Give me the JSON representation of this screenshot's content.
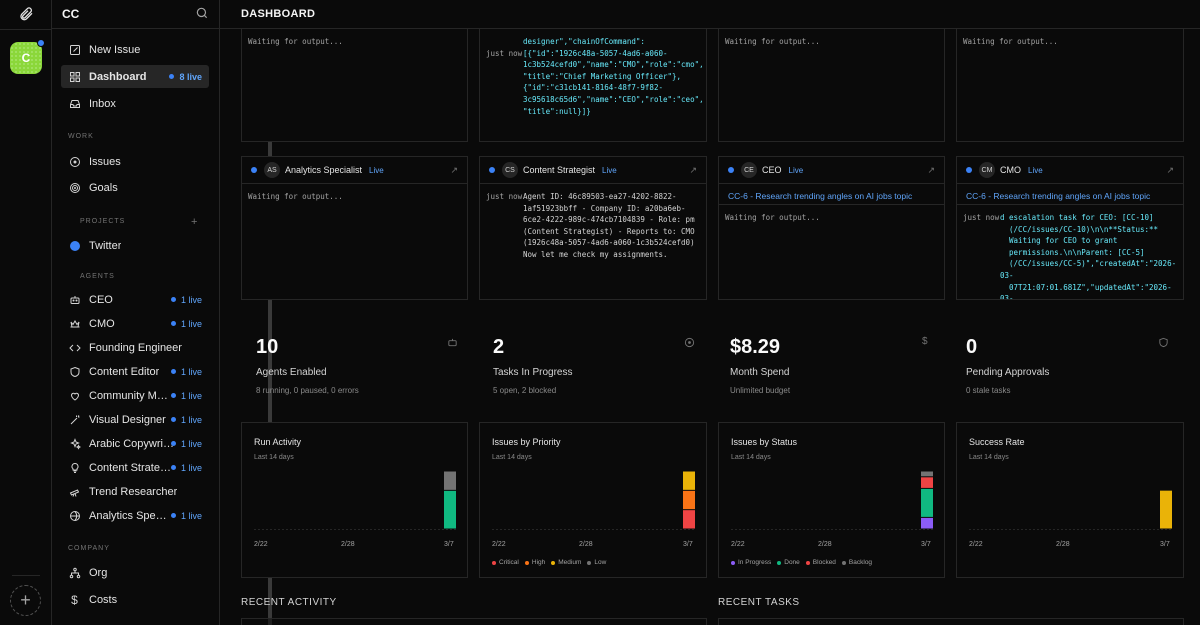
{
  "rail": {
    "company_initial": "C"
  },
  "sidebar": {
    "company_name": "CC",
    "items_top": [
      {
        "label": "New Issue"
      },
      {
        "label": "Dashboard",
        "live": "8 live"
      },
      {
        "label": "Inbox"
      }
    ],
    "work_heading": "WORK",
    "work_items": [
      {
        "label": "Issues"
      },
      {
        "label": "Goals"
      }
    ],
    "projects_heading": "PROJECTS",
    "projects_plus": "+",
    "projects": [
      {
        "label": "Twitter",
        "color": "#3b82f6"
      }
    ],
    "agents_heading": "AGENTS",
    "agents": [
      {
        "label": "CEO",
        "live": "1 live"
      },
      {
        "label": "CMO",
        "live": "1 live"
      },
      {
        "label": "Founding Engineer",
        "live": ""
      },
      {
        "label": "Content Editor",
        "live": "1 live"
      },
      {
        "label": "Community Man...",
        "live": "1 live"
      },
      {
        "label": "Visual Designer",
        "live": "1 live"
      },
      {
        "label": "Arabic Copywriter",
        "live": "1 live"
      },
      {
        "label": "Content Strategist",
        "live": "1 live"
      },
      {
        "label": "Trend Researcher",
        "live": ""
      },
      {
        "label": "Analytics Special...",
        "live": "1 live"
      }
    ],
    "company_heading": "COMPANY",
    "company_items": [
      {
        "label": "Org"
      },
      {
        "label": "Costs"
      }
    ]
  },
  "header": {
    "title": "DASHBOARD"
  },
  "run_cards_top": [
    {
      "lines": [
        {
          "ts": "",
          "text": "Waiting for output..."
        }
      ]
    },
    {
      "lines": [
        {
          "ts": "",
          "text": "designer\",\"chainOfCommand\":"
        },
        {
          "ts": "just now",
          "text": "[{\"id\":\"1926c48a-5057-4ad6-a060-"
        },
        {
          "ts": "",
          "text": "1c3b524cefd0\",\"name\":\"CMO\",\"role\":\"cmo\","
        },
        {
          "ts": "",
          "text": "\"title\":\"Chief Marketing Officer\"},"
        },
        {
          "ts": "",
          "text": "{\"id\":\"c31cb141-8164-48f7-9f82-"
        },
        {
          "ts": "",
          "text": "3c95618c65d6\",\"name\":\"CEO\",\"role\":\"ceo\","
        },
        {
          "ts": "",
          "text": "\"title\":null}]}"
        }
      ]
    },
    {
      "lines": [
        {
          "ts": "",
          "text": "Waiting for output..."
        }
      ]
    },
    {
      "lines": [
        {
          "ts": "",
          "text": "Waiting for output..."
        }
      ]
    }
  ],
  "run_cards": [
    {
      "initials": "AS",
      "name": "Analytics Specialist",
      "live": "Live",
      "issue": "",
      "lines": [
        {
          "ts": "",
          "text": "Waiting for output..."
        }
      ]
    },
    {
      "initials": "CS",
      "name": "Content Strategist",
      "live": "Live",
      "issue": "",
      "lines": [
        {
          "ts": "just now",
          "text": "Agent ID: 46c89503-ea27-4202-8822-\n1af51923bbff - Company ID: a20ba6eb-\n6ce2-4222-989c-474cb7104839 - Role: pm\n(Content Strategist) - Reports to: CMO\n(1926c48a-5057-4ad6-a060-1c3b524cefd0)\nNow let me check my assignments."
        }
      ]
    },
    {
      "initials": "CE",
      "name": "CEO",
      "live": "Live",
      "issue": "CC-6 - Research trending angles on AI jobs topic",
      "lines": [
        {
          "ts": "",
          "text": "Waiting for output..."
        }
      ]
    },
    {
      "initials": "CM",
      "name": "CMO",
      "live": "Live",
      "issue": "CC-6 - Research trending angles on AI jobs topic",
      "lines": [
        {
          "ts": "just now",
          "text": "d escalation task for CEO: [CC-10]\n  (/CC/issues/CC-10)\\n\\n**Status:**\n  Waiting for CEO to grant\n  permissions.\\n\\nParent: [CC-5]\n  (/CC/issues/CC-5)\",\"createdAt\":\"2026-03-\n  07T21:07:01.681Z\",\"updatedAt\":\"2026-03-\n  07T21:07:01.681Z\"}"
        }
      ]
    }
  ],
  "stats": [
    {
      "value": "10",
      "label": "Agents Enabled",
      "sub": "8 running, 0 paused, 0 errors",
      "icon": "robot-icon"
    },
    {
      "value": "2",
      "label": "Tasks In Progress",
      "sub": "5 open, 2 blocked",
      "icon": "circle-dot-icon"
    },
    {
      "value": "$8.29",
      "label": "Month Spend",
      "sub": "Unlimited budget",
      "icon": "dollar-icon"
    },
    {
      "value": "0",
      "label": "Pending Approvals",
      "sub": "0 stale tasks",
      "icon": "shield-icon"
    }
  ],
  "charts": [
    {
      "title": "Run Activity",
      "subtitle": "Last 14 days",
      "xlabels": [
        "2/22",
        "2/28",
        "3/7"
      ],
      "legend": []
    },
    {
      "title": "Issues by Priority",
      "subtitle": "Last 14 days",
      "xlabels": [
        "2/22",
        "2/28",
        "3/7"
      ],
      "legend": [
        {
          "label": "Critical",
          "color": "#ef4444"
        },
        {
          "label": "High",
          "color": "#f97316"
        },
        {
          "label": "Medium",
          "color": "#eab308"
        },
        {
          "label": "Low",
          "color": "#737373"
        }
      ]
    },
    {
      "title": "Issues by Status",
      "subtitle": "Last 14 days",
      "xlabels": [
        "2/22",
        "2/28",
        "3/7"
      ],
      "legend": [
        {
          "label": "In Progress",
          "color": "#8b5cf6"
        },
        {
          "label": "Done",
          "color": "#10b981"
        },
        {
          "label": "Blocked",
          "color": "#ef4444"
        },
        {
          "label": "Backlog",
          "color": "#737373"
        }
      ]
    },
    {
      "title": "Success Rate",
      "subtitle": "Last 14 days",
      "xlabels": [
        "2/22",
        "2/28",
        "3/7"
      ],
      "legend": []
    }
  ],
  "chart_data": [
    {
      "type": "bar",
      "title": "Run Activity",
      "categories": [
        "3/7"
      ],
      "series": [
        {
          "name": "Succeeded",
          "color": "#10b981",
          "values": [
            4
          ]
        },
        {
          "name": "Other",
          "color": "#737373",
          "values": [
            2
          ]
        }
      ]
    },
    {
      "type": "bar",
      "title": "Issues by Priority",
      "categories": [
        "3/7"
      ],
      "series": [
        {
          "name": "Critical",
          "color": "#ef4444",
          "values": [
            1
          ]
        },
        {
          "name": "High",
          "color": "#f97316",
          "values": [
            1
          ]
        },
        {
          "name": "Medium",
          "color": "#eab308",
          "values": [
            1
          ]
        }
      ]
    },
    {
      "type": "bar",
      "title": "Issues by Status",
      "categories": [
        "3/7"
      ],
      "series": [
        {
          "name": "In Progress",
          "color": "#8b5cf6",
          "values": [
            1
          ]
        },
        {
          "name": "Done",
          "color": "#10b981",
          "values": [
            2.5
          ]
        },
        {
          "name": "Blocked",
          "color": "#ef4444",
          "values": [
            1
          ]
        },
        {
          "name": "Backlog",
          "color": "#737373",
          "values": [
            0.5
          ]
        }
      ]
    },
    {
      "type": "bar",
      "title": "Success Rate",
      "categories": [
        "3/7"
      ],
      "series": [
        {
          "name": "Success",
          "color": "#eab308",
          "values": [
            0.67
          ]
        }
      ]
    }
  ],
  "sections": {
    "recent_activity": "RECENT ACTIVITY",
    "recent_tasks": "RECENT TASKS"
  }
}
